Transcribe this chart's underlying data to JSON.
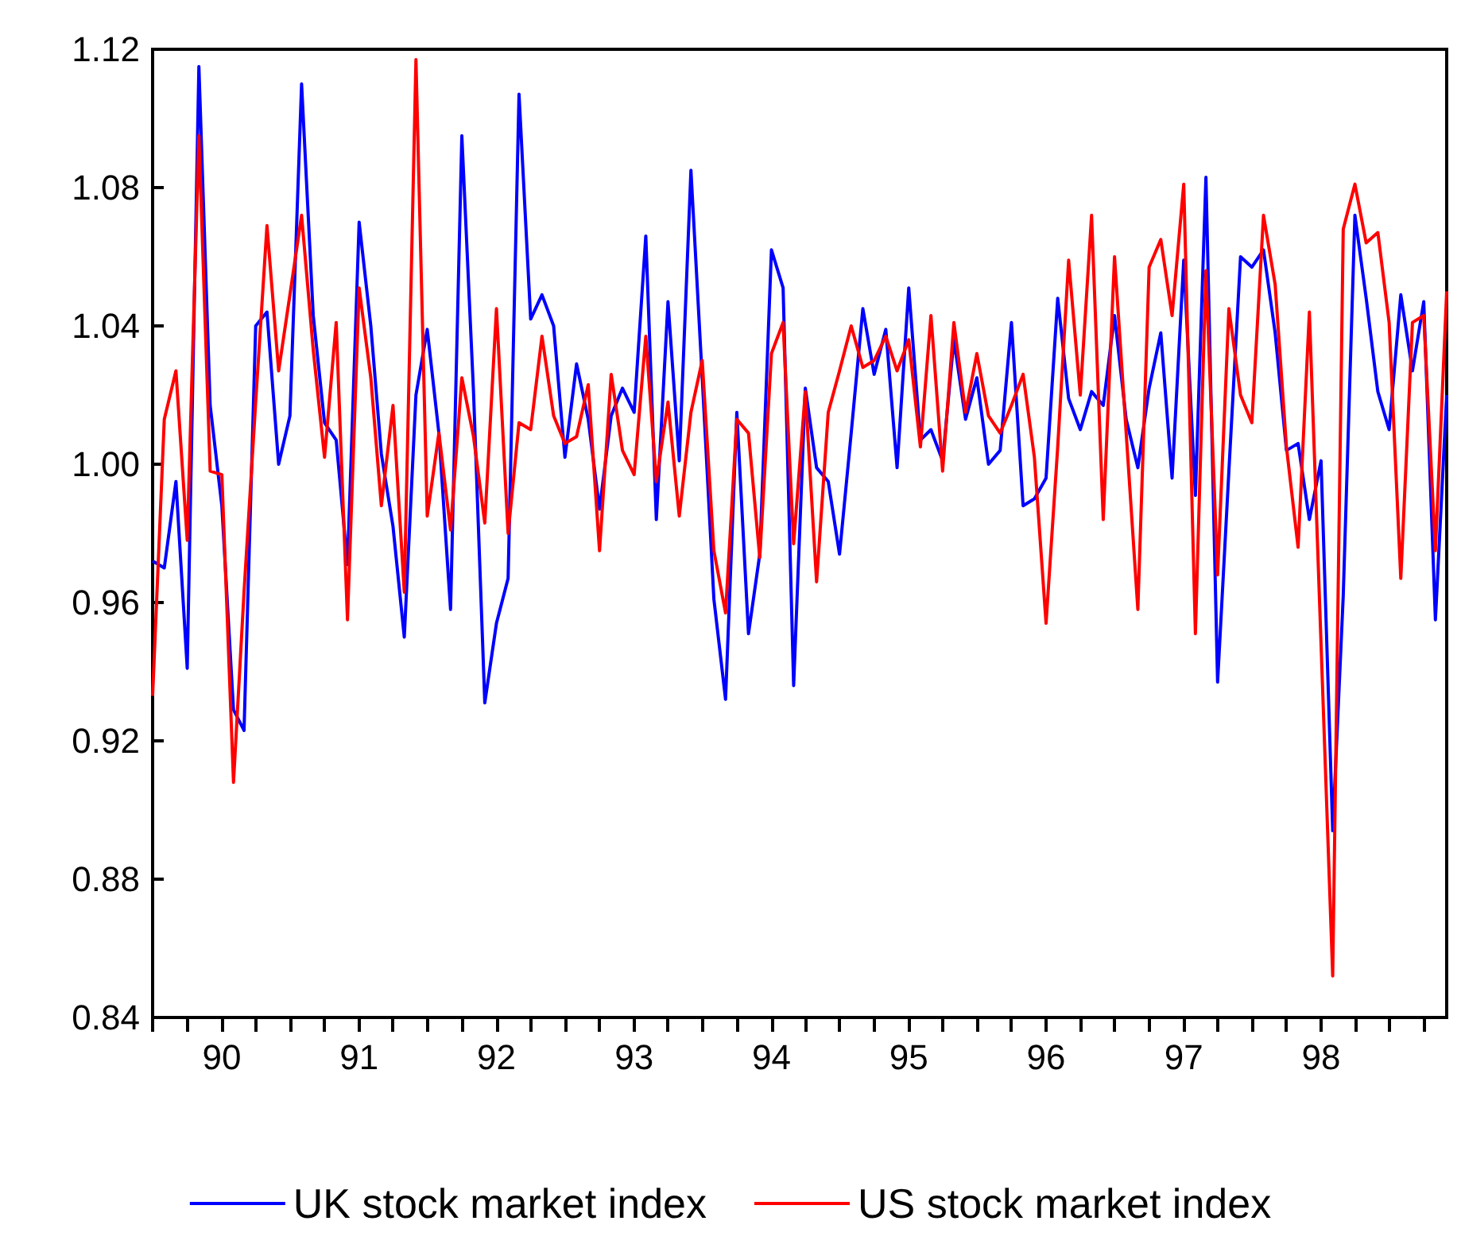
{
  "chart_data": {
    "type": "line",
    "x": [
      "1989-07",
      "1989-08",
      "1989-09",
      "1989-10",
      "1989-11",
      "1989-12",
      "1990-01",
      "1990-02",
      "1990-03",
      "1990-04",
      "1990-05",
      "1990-06",
      "1990-07",
      "1990-08",
      "1990-09",
      "1990-10",
      "1990-11",
      "1990-12",
      "1991-01",
      "1991-02",
      "1991-03",
      "1991-04",
      "1991-05",
      "1991-06",
      "1991-07",
      "1991-08",
      "1991-09",
      "1991-10",
      "1991-11",
      "1991-12",
      "1992-01",
      "1992-02",
      "1992-03",
      "1992-04",
      "1992-05",
      "1992-06",
      "1992-07",
      "1992-08",
      "1992-09",
      "1992-10",
      "1992-11",
      "1992-12",
      "1993-01",
      "1993-02",
      "1993-03",
      "1993-04",
      "1993-05",
      "1993-06",
      "1993-07",
      "1993-08",
      "1993-09",
      "1993-10",
      "1993-11",
      "1993-12",
      "1994-01",
      "1994-02",
      "1994-03",
      "1994-04",
      "1994-05",
      "1994-06",
      "1994-07",
      "1994-08",
      "1994-09",
      "1994-10",
      "1994-11",
      "1994-12",
      "1995-01",
      "1995-02",
      "1995-03",
      "1995-04",
      "1995-05",
      "1995-06",
      "1995-07",
      "1995-08",
      "1995-09",
      "1995-10",
      "1995-11",
      "1995-12",
      "1996-01",
      "1996-02",
      "1996-03",
      "1996-04",
      "1996-05",
      "1996-06",
      "1996-07",
      "1996-08",
      "1996-09",
      "1996-10",
      "1996-11",
      "1996-12",
      "1997-01",
      "1997-02",
      "1997-03",
      "1997-04",
      "1997-05",
      "1997-06",
      "1997-07",
      "1997-08",
      "1997-09",
      "1997-10",
      "1997-11",
      "1997-12",
      "1998-01",
      "1998-02",
      "1998-03",
      "1998-04",
      "1998-05",
      "1998-06",
      "1998-07",
      "1998-08",
      "1998-09",
      "1998-10",
      "1998-11",
      "1998-12"
    ],
    "series": [
      {
        "name": "UK stock market index",
        "color": "#0000ff",
        "values": [
          0.972,
          0.97,
          0.995,
          0.941,
          1.115,
          1.017,
          0.988,
          0.929,
          0.923,
          1.04,
          1.044,
          1.0,
          1.014,
          1.11,
          1.043,
          1.012,
          1.007,
          0.971,
          1.07,
          1.04,
          1.003,
          0.982,
          0.95,
          1.02,
          1.039,
          1.009,
          0.958,
          1.095,
          1.021,
          0.931,
          0.954,
          0.967,
          1.107,
          1.042,
          1.049,
          1.04,
          1.002,
          1.029,
          1.013,
          0.987,
          1.014,
          1.022,
          1.015,
          1.066,
          0.984,
          1.047,
          1.001,
          1.085,
          1.025,
          0.961,
          0.932,
          1.015,
          0.951,
          0.974,
          1.062,
          1.051,
          0.936,
          1.022,
          0.999,
          0.995,
          0.974,
          1.009,
          1.045,
          1.026,
          1.039,
          0.999,
          1.051,
          1.007,
          1.01,
          1.001,
          1.036,
          1.013,
          1.025,
          1.0,
          1.004,
          1.041,
          0.988,
          0.99,
          0.996,
          1.048,
          1.019,
          1.01,
          1.021,
          1.017,
          1.043,
          1.013,
          0.999,
          1.022,
          1.038,
          0.996,
          1.059,
          0.991,
          1.083,
          0.937,
          0.998,
          1.06,
          1.057,
          1.062,
          1.038,
          1.004,
          1.006,
          0.984,
          1.001,
          0.894,
          0.962,
          1.072,
          1.048,
          1.021,
          1.01,
          1.049,
          1.027,
          1.047,
          0.955,
          1.02
        ]
      },
      {
        "name": "US stock market index",
        "color": "#ff0000",
        "values": [
          0.933,
          1.013,
          1.027,
          0.978,
          1.095,
          0.998,
          0.997,
          0.908,
          0.963,
          1.018,
          1.069,
          1.027,
          1.049,
          1.072,
          1.033,
          1.002,
          1.041,
          0.955,
          1.051,
          1.025,
          0.988,
          1.017,
          0.963,
          1.117,
          0.985,
          1.009,
          0.981,
          1.025,
          1.008,
          0.983,
          1.045,
          0.98,
          1.012,
          1.01,
          1.037,
          1.014,
          1.006,
          1.008,
          1.023,
          0.975,
          1.026,
          1.004,
          0.997,
          1.037,
          0.995,
          1.018,
          0.985,
          1.015,
          1.03,
          0.975,
          0.957,
          1.013,
          1.009,
          0.973,
          1.032,
          1.041,
          0.977,
          1.021,
          0.966,
          1.015,
          1.027,
          1.04,
          1.028,
          1.03,
          1.037,
          1.027,
          1.036,
          1.005,
          1.043,
          0.998,
          1.041,
          1.015,
          1.032,
          1.014,
          1.009,
          1.017,
          1.026,
          1.002,
          0.954,
          1.005,
          1.059,
          1.02,
          1.072,
          0.984,
          1.06,
          1.009,
          0.958,
          1.057,
          1.065,
          1.043,
          1.081,
          0.951,
          1.056,
          0.968,
          1.045,
          1.02,
          1.012,
          1.072,
          1.052,
          1.005,
          0.976,
          1.044,
          0.948,
          0.852,
          1.068,
          1.081,
          1.064,
          1.067,
          1.041,
          0.967,
          1.041,
          1.043,
          0.975,
          1.05
        ]
      }
    ],
    "xlim": [
      "1989-07",
      "1998-12"
    ],
    "xticks": [
      {
        "value": "1989-07",
        "label": null
      },
      {
        "value": "1989-10",
        "label": null
      },
      {
        "value": "1990-01",
        "label": "90"
      },
      {
        "value": "1990-04",
        "label": null
      },
      {
        "value": "1990-07",
        "label": null
      },
      {
        "value": "1990-10",
        "label": null
      },
      {
        "value": "1991-01",
        "label": "91"
      },
      {
        "value": "1991-04",
        "label": null
      },
      {
        "value": "1991-07",
        "label": null
      },
      {
        "value": "1991-10",
        "label": null
      },
      {
        "value": "1992-01",
        "label": "92"
      },
      {
        "value": "1992-04",
        "label": null
      },
      {
        "value": "1992-07",
        "label": null
      },
      {
        "value": "1992-10",
        "label": null
      },
      {
        "value": "1993-01",
        "label": "93"
      },
      {
        "value": "1993-04",
        "label": null
      },
      {
        "value": "1993-07",
        "label": null
      },
      {
        "value": "1993-10",
        "label": null
      },
      {
        "value": "1994-01",
        "label": "94"
      },
      {
        "value": "1994-04",
        "label": null
      },
      {
        "value": "1994-07",
        "label": null
      },
      {
        "value": "1994-10",
        "label": null
      },
      {
        "value": "1995-01",
        "label": "95"
      },
      {
        "value": "1995-04",
        "label": null
      },
      {
        "value": "1995-07",
        "label": null
      },
      {
        "value": "1995-10",
        "label": null
      },
      {
        "value": "1996-01",
        "label": "96"
      },
      {
        "value": "1996-04",
        "label": null
      },
      {
        "value": "1996-07",
        "label": null
      },
      {
        "value": "1996-10",
        "label": null
      },
      {
        "value": "1997-01",
        "label": "97"
      },
      {
        "value": "1997-04",
        "label": null
      },
      {
        "value": "1997-07",
        "label": null
      },
      {
        "value": "1997-10",
        "label": null
      },
      {
        "value": "1998-01",
        "label": "98"
      },
      {
        "value": "1998-04",
        "label": null
      },
      {
        "value": "1998-07",
        "label": null
      },
      {
        "value": "1998-10",
        "label": null
      }
    ],
    "ylim": [
      0.84,
      1.12
    ],
    "yticks": [
      0.84,
      0.88,
      0.92,
      0.96,
      {
        "value": 1,
        "label": "1.00"
      },
      1.04,
      1.08,
      1.12
    ],
    "legend": "bottom",
    "grid": false
  }
}
